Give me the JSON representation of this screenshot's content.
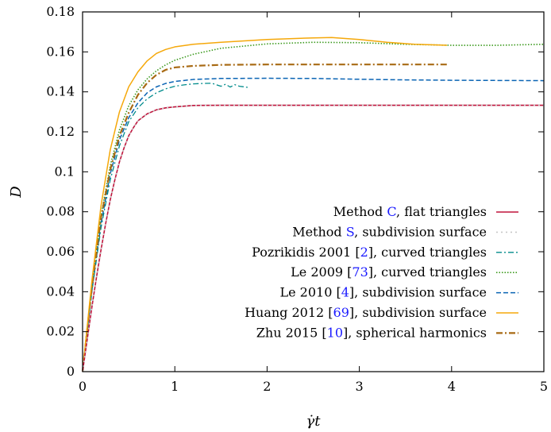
{
  "chart_data": {
    "type": "line",
    "xlabel": "γ̇t",
    "ylabel": "D",
    "xlim": [
      0,
      5
    ],
    "ylim": [
      0,
      0.18
    ],
    "x_ticks": [
      "0",
      "1",
      "2",
      "3",
      "4",
      "5"
    ],
    "y_ticks": [
      "0",
      "0.02",
      "0.04",
      "0.06",
      "0.08",
      "0.1",
      "0.12",
      "0.14",
      "0.16",
      "0.18"
    ],
    "grid": false,
    "legend_position": "bottom-right",
    "series": [
      {
        "name_pre": "Method ",
        "name_ref": "C",
        "name_post": ", flat triangles",
        "color": "#c0143c",
        "dash": "",
        "width": 1.6,
        "points": [
          [
            0,
            0
          ],
          [
            0.05,
            0.016
          ],
          [
            0.1,
            0.032
          ],
          [
            0.15,
            0.047
          ],
          [
            0.2,
            0.061
          ],
          [
            0.25,
            0.074
          ],
          [
            0.3,
            0.086
          ],
          [
            0.35,
            0.096
          ],
          [
            0.4,
            0.105
          ],
          [
            0.45,
            0.112
          ],
          [
            0.5,
            0.118
          ],
          [
            0.55,
            0.122
          ],
          [
            0.6,
            0.1255
          ],
          [
            0.7,
            0.129
          ],
          [
            0.8,
            0.131
          ],
          [
            0.9,
            0.132
          ],
          [
            1.0,
            0.1325
          ],
          [
            1.2,
            0.1332
          ],
          [
            1.5,
            0.1333
          ],
          [
            2,
            0.1333
          ],
          [
            3,
            0.1333
          ],
          [
            4,
            0.1333
          ],
          [
            5,
            0.1333
          ]
        ]
      },
      {
        "name_pre": "Method ",
        "name_ref": "S",
        "name_post": ", subdivision surface",
        "color": "#c8c8c8",
        "dash": "2,4",
        "width": 1.6,
        "points": [
          [
            0,
            0
          ],
          [
            0.05,
            0.016
          ],
          [
            0.1,
            0.032
          ],
          [
            0.15,
            0.047
          ],
          [
            0.2,
            0.061
          ],
          [
            0.25,
            0.074
          ],
          [
            0.3,
            0.086
          ],
          [
            0.35,
            0.096
          ],
          [
            0.4,
            0.105
          ],
          [
            0.45,
            0.112
          ],
          [
            0.5,
            0.118
          ],
          [
            0.55,
            0.122
          ],
          [
            0.6,
            0.1255
          ],
          [
            0.7,
            0.129
          ],
          [
            0.8,
            0.131
          ],
          [
            0.9,
            0.132
          ],
          [
            1.0,
            0.1325
          ],
          [
            1.2,
            0.1332
          ],
          [
            1.5,
            0.1333
          ],
          [
            2,
            0.1333
          ],
          [
            3,
            0.1333
          ],
          [
            4,
            0.1333
          ],
          [
            5,
            0.1333
          ]
        ]
      },
      {
        "name_pre": "Pozrikidis 2001 [",
        "name_ref": "2",
        "name_post": "], curved triangles",
        "color": "#008b8b",
        "dash": "7,3,2,3",
        "width": 1.3,
        "points": [
          [
            0,
            0
          ],
          [
            0.1,
            0.04
          ],
          [
            0.2,
            0.072
          ],
          [
            0.3,
            0.096
          ],
          [
            0.4,
            0.113
          ],
          [
            0.5,
            0.125
          ],
          [
            0.6,
            0.132
          ],
          [
            0.7,
            0.1365
          ],
          [
            0.8,
            0.1395
          ],
          [
            0.9,
            0.1415
          ],
          [
            1.0,
            0.1428
          ],
          [
            1.1,
            0.1435
          ],
          [
            1.2,
            0.144
          ],
          [
            1.3,
            0.1442
          ],
          [
            1.4,
            0.1443
          ],
          [
            1.5,
            0.1428
          ],
          [
            1.55,
            0.1438
          ],
          [
            1.6,
            0.1424
          ],
          [
            1.65,
            0.1436
          ],
          [
            1.7,
            0.1428
          ],
          [
            1.75,
            0.1425
          ],
          [
            1.8,
            0.1422
          ]
        ]
      },
      {
        "name_pre": "Le 2009 [",
        "name_ref": "73",
        "name_post": "], curved triangles",
        "color": "#3c9a1e",
        "dash": "1.5,2",
        "width": 1.6,
        "points": [
          [
            0,
            0
          ],
          [
            0.1,
            0.042
          ],
          [
            0.2,
            0.078
          ],
          [
            0.3,
            0.103
          ],
          [
            0.4,
            0.121
          ],
          [
            0.5,
            0.133
          ],
          [
            0.6,
            0.141
          ],
          [
            0.7,
            0.1465
          ],
          [
            0.8,
            0.1505
          ],
          [
            0.9,
            0.1535
          ],
          [
            1.0,
            0.1558
          ],
          [
            1.2,
            0.1588
          ],
          [
            1.5,
            0.1618
          ],
          [
            2.0,
            0.164
          ],
          [
            2.5,
            0.1648
          ],
          [
            3.0,
            0.1646
          ],
          [
            3.5,
            0.1638
          ],
          [
            4.0,
            0.1633
          ],
          [
            4.5,
            0.1633
          ],
          [
            5.0,
            0.1638
          ]
        ]
      },
      {
        "name_pre": "Le 2010 [",
        "name_ref": "4",
        "name_post": "], subdivision surface",
        "color": "#0a64b4",
        "dash": "6,3",
        "width": 1.5,
        "points": [
          [
            0,
            0
          ],
          [
            0.1,
            0.04
          ],
          [
            0.2,
            0.074
          ],
          [
            0.3,
            0.099
          ],
          [
            0.4,
            0.116
          ],
          [
            0.5,
            0.127
          ],
          [
            0.6,
            0.1345
          ],
          [
            0.7,
            0.1395
          ],
          [
            0.8,
            0.1425
          ],
          [
            0.9,
            0.1442
          ],
          [
            1.0,
            0.1452
          ],
          [
            1.2,
            0.1462
          ],
          [
            1.5,
            0.1467
          ],
          [
            2.0,
            0.1468
          ],
          [
            2.5,
            0.1467
          ],
          [
            3.0,
            0.1463
          ],
          [
            3.5,
            0.146
          ],
          [
            4.0,
            0.1458
          ],
          [
            4.5,
            0.1457
          ],
          [
            5.0,
            0.1456
          ]
        ]
      },
      {
        "name_pre": "Huang 2012 [",
        "name_ref": "69",
        "name_post": "], subdivision surface",
        "color": "#f5a80a",
        "dash": "",
        "width": 1.5,
        "points": [
          [
            0,
            0
          ],
          [
            0.1,
            0.045
          ],
          [
            0.2,
            0.083
          ],
          [
            0.3,
            0.111
          ],
          [
            0.4,
            0.13
          ],
          [
            0.5,
            0.1425
          ],
          [
            0.6,
            0.15
          ],
          [
            0.7,
            0.1555
          ],
          [
            0.8,
            0.1592
          ],
          [
            0.9,
            0.1612
          ],
          [
            1.0,
            0.1625
          ],
          [
            1.2,
            0.1638
          ],
          [
            1.5,
            0.1648
          ],
          [
            2.0,
            0.1662
          ],
          [
            2.5,
            0.167
          ],
          [
            2.7,
            0.1672
          ],
          [
            3.0,
            0.1662
          ],
          [
            3.3,
            0.1648
          ],
          [
            3.6,
            0.1638
          ],
          [
            3.95,
            0.1633
          ]
        ]
      },
      {
        "name_pre": "Zhu 2015 [",
        "name_ref": "10",
        "name_post": "], spherical harmonics",
        "color": "#a86a14",
        "dash": "8,3,2,3",
        "width": 2.2,
        "points": [
          [
            0,
            0
          ],
          [
            0.1,
            0.042
          ],
          [
            0.2,
            0.077
          ],
          [
            0.3,
            0.101
          ],
          [
            0.4,
            0.118
          ],
          [
            0.5,
            0.1295
          ],
          [
            0.6,
            0.1385
          ],
          [
            0.7,
            0.1445
          ],
          [
            0.8,
            0.1485
          ],
          [
            0.9,
            0.151
          ],
          [
            1.0,
            0.1522
          ],
          [
            1.2,
            0.153
          ],
          [
            1.5,
            0.1535
          ],
          [
            2.0,
            0.1537
          ],
          [
            3.0,
            0.1537
          ],
          [
            3.95,
            0.1537
          ]
        ]
      }
    ]
  }
}
